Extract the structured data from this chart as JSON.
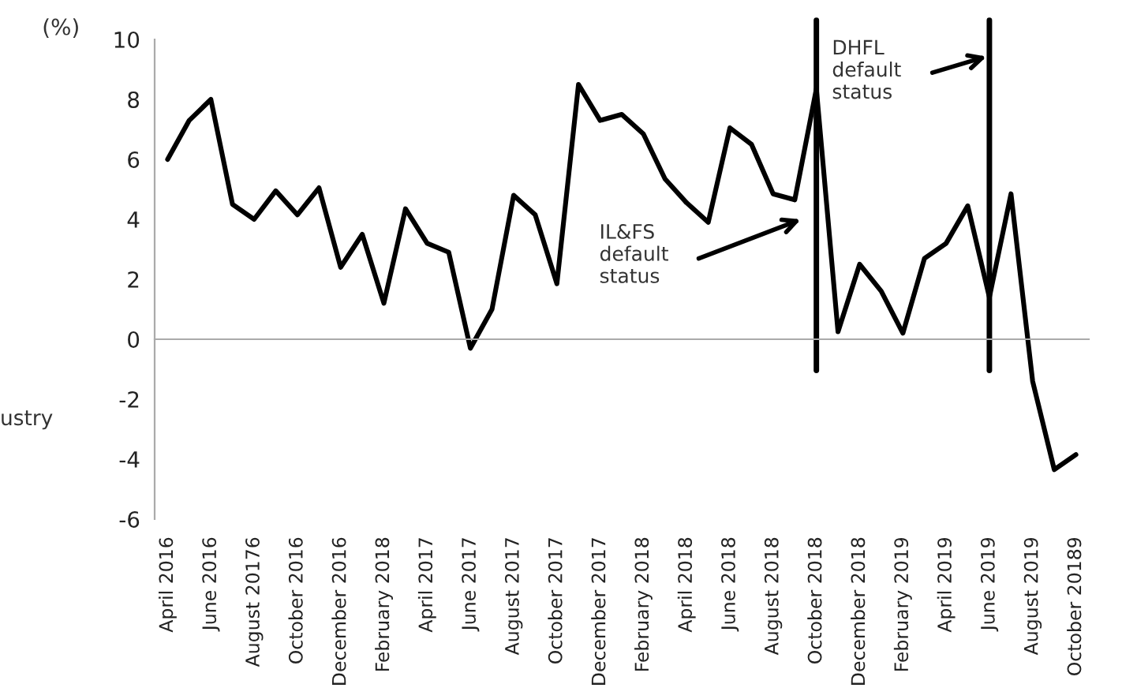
{
  "chart_data": {
    "type": "line",
    "ylabel": "(%)",
    "categories": [
      "April 2016",
      null,
      "June 2016",
      null,
      "August 20176",
      null,
      "October 2016",
      null,
      "December 2016",
      null,
      "February 2018",
      null,
      "April 2017",
      null,
      "June 2017",
      null,
      "August 2017",
      null,
      "October 2017",
      null,
      "December 2017",
      null,
      "February 2018",
      null,
      "April 2018",
      null,
      "June 2018",
      null,
      "August 2018",
      null,
      "October 2018",
      null,
      "December 2018",
      null,
      "February 2019",
      null,
      "April 2019",
      null,
      "June 2019",
      null,
      "August 2019",
      null,
      "October 20189"
    ],
    "series": [
      {
        "color": "#000000",
        "values": [
          6.0,
          7.3,
          8.0,
          4.5,
          4.0,
          4.95,
          4.15,
          5.05,
          2.4,
          3.5,
          1.2,
          4.35,
          3.2,
          2.9,
          -0.3,
          1.0,
          4.8,
          4.15,
          1.85,
          8.5,
          7.3,
          7.5,
          6.85,
          5.35,
          4.55,
          3.9,
          7.05,
          6.5,
          4.85,
          4.65,
          8.35,
          0.25,
          2.5,
          1.6,
          0.2,
          2.7,
          3.2,
          4.45,
          1.4,
          4.85,
          -1.4,
          -4.35,
          -3.85
        ]
      }
    ],
    "ylim": [
      -6,
      10
    ],
    "yticks": [
      -6,
      -4,
      -2,
      0,
      2,
      4,
      6,
      8,
      10
    ],
    "grid": false,
    "marker": "none",
    "line_style": "solid",
    "ref_lines": [
      {
        "axis": "x",
        "value": "October 2018",
        "label": null,
        "color": "#000000"
      },
      {
        "axis": "x",
        "value": "June 2019",
        "label": null,
        "color": "#000000"
      }
    ],
    "annotations": [
      "IL&FS\ndefault\nstatus",
      "DHFL\ndefault\nstatus",
      "ustry"
    ]
  }
}
